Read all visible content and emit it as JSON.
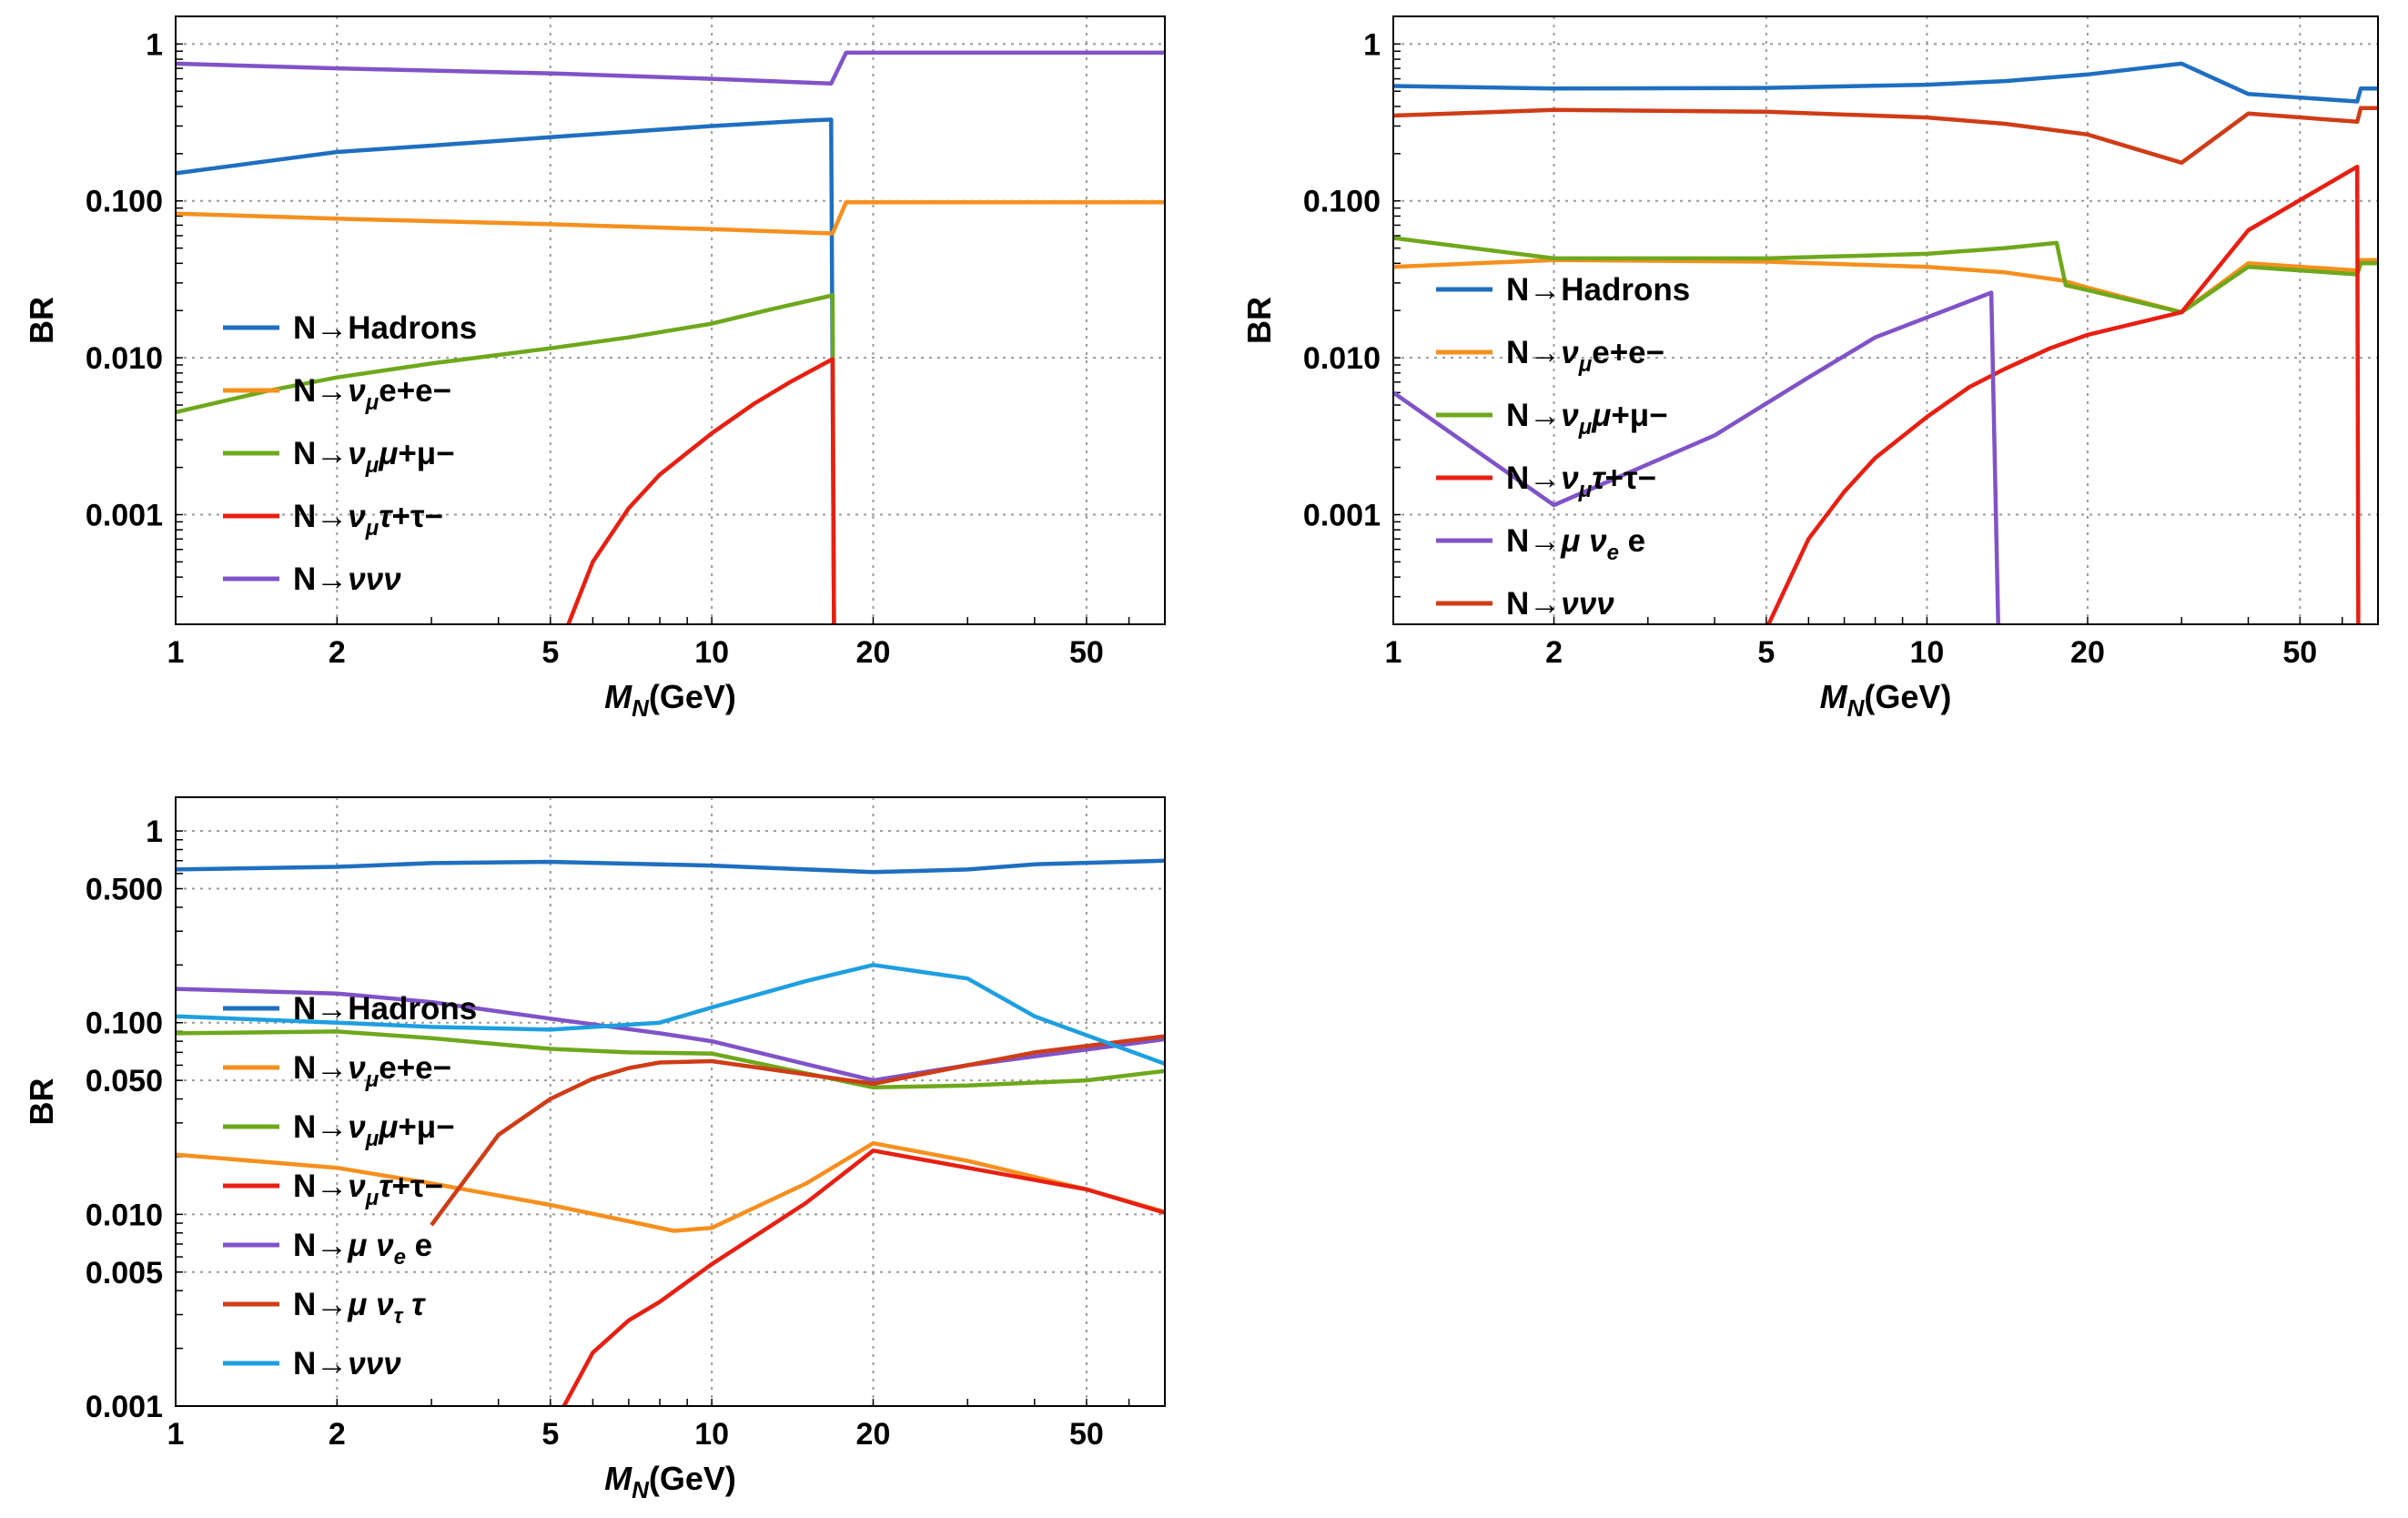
{
  "chart_data": [
    {
      "type": "line",
      "xlabel": "M_N(GeV)",
      "xlabel_main": "M",
      "xlabel_sub": "N",
      "xlabel_unit": "(GeV)",
      "ylabel": "BR",
      "xscale": "log",
      "yscale": "log",
      "xlim": [
        1,
        70
      ],
      "ylim": [
        0.0002,
        1.5
      ],
      "xticks": [
        {
          "v": 1,
          "label": "1"
        },
        {
          "v": 2,
          "label": "2"
        },
        {
          "v": 5,
          "label": "5"
        },
        {
          "v": 10,
          "label": "10"
        },
        {
          "v": 20,
          "label": "20"
        },
        {
          "v": 50,
          "label": "50"
        }
      ],
      "yticks": [
        {
          "v": 1,
          "label": "1"
        },
        {
          "v": 0.1,
          "label": "0.100"
        },
        {
          "v": 0.01,
          "label": "0.010"
        },
        {
          "v": 0.001,
          "label": "0.001"
        }
      ],
      "legend_position": "lower-left",
      "series": [
        {
          "name": "Hadrons",
          "label": "N→Hadrons",
          "color": "#1f6fc0",
          "points": [
            [
              1,
              0.15
            ],
            [
              1.5,
              0.18
            ],
            [
              2,
              0.205
            ],
            [
              3,
              0.225
            ],
            [
              5,
              0.255
            ],
            [
              10,
              0.3
            ],
            [
              15,
              0.325
            ],
            [
              16.7,
              0.33
            ],
            [
              16.9,
              0.0002
            ]
          ]
        },
        {
          "name": "nu_mu e e",
          "label": "N→νμe+e−",
          "color": "#f5901e",
          "points": [
            [
              1,
              0.083
            ],
            [
              2,
              0.077
            ],
            [
              5,
              0.071
            ],
            [
              10,
              0.066
            ],
            [
              16.8,
              0.062
            ],
            [
              17.8,
              0.098
            ],
            [
              70,
              0.098
            ]
          ]
        },
        {
          "name": "nu_mu mu mu",
          "label": "N→νμμ+μ−",
          "color": "#6ea81c",
          "points": [
            [
              1,
              0.0045
            ],
            [
              1.5,
              0.0062
            ],
            [
              2,
              0.0075
            ],
            [
              3,
              0.0092
            ],
            [
              5,
              0.0115
            ],
            [
              7,
              0.0135
            ],
            [
              10,
              0.0165
            ],
            [
              13,
              0.0205
            ],
            [
              16.8,
              0.025
            ],
            [
              16.9,
              0.0002
            ]
          ]
        },
        {
          "name": "nu_mu tau tau",
          "label": "N→νμτ+τ−",
          "color": "#e81f12",
          "points": [
            [
              5.4,
              0.0002
            ],
            [
              6,
              0.0005
            ],
            [
              7,
              0.0011
            ],
            [
              8,
              0.0018
            ],
            [
              10,
              0.0033
            ],
            [
              12,
              0.0051
            ],
            [
              14,
              0.007
            ],
            [
              16.8,
              0.0098
            ],
            [
              16.9,
              0.0002
            ]
          ]
        },
        {
          "name": "nu nu nu",
          "label": "N→ννν",
          "color": "#8053c8",
          "points": [
            [
              1,
              0.75
            ],
            [
              2,
              0.7
            ],
            [
              5,
              0.65
            ],
            [
              10,
              0.6
            ],
            [
              16.7,
              0.56
            ],
            [
              17.8,
              0.88
            ],
            [
              70,
              0.88
            ]
          ]
        }
      ]
    },
    {
      "type": "line",
      "xlabel": "M_N(GeV)",
      "xlabel_main": "M",
      "xlabel_sub": "N",
      "xlabel_unit": "(GeV)",
      "ylabel": "BR",
      "xscale": "log",
      "yscale": "log",
      "xlim": [
        1,
        70
      ],
      "ylim": [
        0.0002,
        1.5
      ],
      "xticks": [
        {
          "v": 1,
          "label": "1"
        },
        {
          "v": 2,
          "label": "2"
        },
        {
          "v": 5,
          "label": "5"
        },
        {
          "v": 10,
          "label": "10"
        },
        {
          "v": 20,
          "label": "20"
        },
        {
          "v": 50,
          "label": "50"
        }
      ],
      "yticks": [
        {
          "v": 1,
          "label": "1"
        },
        {
          "v": 0.1,
          "label": "0.100"
        },
        {
          "v": 0.01,
          "label": "0.010"
        },
        {
          "v": 0.001,
          "label": "0.001"
        }
      ],
      "legend_position": "middle-left",
      "series": [
        {
          "name": "Hadrons",
          "label": "N→Hadrons",
          "color": "#1f6fc0",
          "points": [
            [
              1,
              0.54
            ],
            [
              2,
              0.52
            ],
            [
              5,
              0.525
            ],
            [
              10,
              0.55
            ],
            [
              14,
              0.58
            ],
            [
              20,
              0.64
            ],
            [
              30,
              0.75
            ],
            [
              40,
              0.48
            ],
            [
              64,
              0.43
            ],
            [
              65,
              0.52
            ],
            [
              70,
              0.52
            ]
          ]
        },
        {
          "name": "nu_mu e e",
          "label": "N→νμe+e−",
          "color": "#f5901e",
          "points": [
            [
              1,
              0.038
            ],
            [
              2,
              0.042
            ],
            [
              5,
              0.041
            ],
            [
              10,
              0.038
            ],
            [
              14,
              0.035
            ],
            [
              18,
              0.031
            ],
            [
              20,
              0.028
            ],
            [
              30,
              0.0195
            ],
            [
              40,
              0.04
            ],
            [
              64,
              0.036
            ],
            [
              65,
              0.042
            ],
            [
              70,
              0.042
            ]
          ]
        },
        {
          "name": "nu_mu mu mu",
          "label": "N→νμμ+μ−",
          "color": "#6ea81c",
          "points": [
            [
              1,
              0.058
            ],
            [
              2,
              0.043
            ],
            [
              5,
              0.043
            ],
            [
              10,
              0.046
            ],
            [
              14,
              0.05
            ],
            [
              17.5,
              0.054
            ],
            [
              18.2,
              0.029
            ],
            [
              20,
              0.027
            ],
            [
              30,
              0.0195
            ],
            [
              40,
              0.038
            ],
            [
              64,
              0.034
            ],
            [
              65,
              0.04
            ],
            [
              70,
              0.04
            ]
          ]
        },
        {
          "name": "nu_mu tau tau",
          "label": "N→νμτ+τ−",
          "color": "#e81f12",
          "points": [
            [
              5.05,
              0.0002
            ],
            [
              6,
              0.0007
            ],
            [
              7,
              0.0014
            ],
            [
              8,
              0.0023
            ],
            [
              10,
              0.0042
            ],
            [
              12,
              0.0065
            ],
            [
              14,
              0.0085
            ],
            [
              17,
              0.0115
            ],
            [
              20,
              0.014
            ],
            [
              30,
              0.0195
            ],
            [
              40,
              0.065
            ],
            [
              64,
              0.165
            ],
            [
              64.3,
              0.0002
            ]
          ]
        },
        {
          "name": "mu nu_e e",
          "label": "N→μ νe e",
          "color": "#8053c8",
          "points": [
            [
              1,
              0.006
            ],
            [
              2,
              0.00115
            ],
            [
              4,
              0.0032
            ],
            [
              6,
              0.0075
            ],
            [
              8,
              0.0135
            ],
            [
              13.2,
              0.026
            ],
            [
              13.6,
              0.0002
            ]
          ]
        },
        {
          "name": "nu nu nu",
          "label": "N→ννν",
          "color": "#cf3c16",
          "points": [
            [
              1,
              0.35
            ],
            [
              2,
              0.38
            ],
            [
              5,
              0.37
            ],
            [
              10,
              0.34
            ],
            [
              14,
              0.31
            ],
            [
              20,
              0.265
            ],
            [
              30,
              0.175
            ],
            [
              40,
              0.36
            ],
            [
              64,
              0.32
            ],
            [
              65,
              0.39
            ],
            [
              70,
              0.39
            ]
          ]
        }
      ]
    },
    {
      "type": "line",
      "xlabel": "M_N(GeV)",
      "xlabel_main": "M",
      "xlabel_sub": "N",
      "xlabel_unit": "(GeV)",
      "ylabel": "BR",
      "xscale": "log",
      "yscale": "log",
      "xlim": [
        1,
        70
      ],
      "ylim": [
        0.001,
        1.5
      ],
      "xticks": [
        {
          "v": 1,
          "label": "1"
        },
        {
          "v": 2,
          "label": "2"
        },
        {
          "v": 5,
          "label": "5"
        },
        {
          "v": 10,
          "label": "10"
        },
        {
          "v": 20,
          "label": "20"
        },
        {
          "v": 50,
          "label": "50"
        }
      ],
      "yticks": [
        {
          "v": 1,
          "label": "1"
        },
        {
          "v": 0.5,
          "label": "0.500"
        },
        {
          "v": 0.1,
          "label": "0.100"
        },
        {
          "v": 0.05,
          "label": "0.050"
        },
        {
          "v": 0.01,
          "label": "0.010"
        },
        {
          "v": 0.005,
          "label": "0.005"
        },
        {
          "v": 0.001,
          "label": "0.001"
        }
      ],
      "legend_position": "middle",
      "series": [
        {
          "name": "Hadrons",
          "label": "N→Hadrons",
          "color": "#1f6fc0",
          "points": [
            [
              1,
              0.63
            ],
            [
              2,
              0.65
            ],
            [
              3,
              0.68
            ],
            [
              5,
              0.69
            ],
            [
              10,
              0.66
            ],
            [
              20,
              0.61
            ],
            [
              30,
              0.63
            ],
            [
              40,
              0.67
            ],
            [
              70,
              0.7
            ]
          ]
        },
        {
          "name": "nu_mu e e",
          "label": "N→νμe+e−",
          "color": "#f5901e",
          "points": [
            [
              1,
              0.0205
            ],
            [
              2,
              0.0175
            ],
            [
              3,
              0.0145
            ],
            [
              5,
              0.0112
            ],
            [
              7,
              0.0092
            ],
            [
              8.5,
              0.0082
            ],
            [
              10,
              0.0085
            ],
            [
              15,
              0.0145
            ],
            [
              20,
              0.0235
            ],
            [
              30,
              0.019
            ],
            [
              50,
              0.0135
            ],
            [
              70,
              0.0103
            ]
          ]
        },
        {
          "name": "nu_mu mu mu",
          "label": "N→νμμ+μ−",
          "color": "#6ea81c",
          "points": [
            [
              1,
              0.088
            ],
            [
              2,
              0.09
            ],
            [
              3,
              0.083
            ],
            [
              5,
              0.073
            ],
            [
              7,
              0.07
            ],
            [
              10,
              0.069
            ],
            [
              20,
              0.046
            ],
            [
              30,
              0.047
            ],
            [
              50,
              0.05
            ],
            [
              70,
              0.056
            ]
          ]
        },
        {
          "name": "nu_mu tau tau",
          "label": "N→νμτ+τ−",
          "color": "#e81f12",
          "points": [
            [
              5.3,
              0.001
            ],
            [
              6,
              0.0019
            ],
            [
              7,
              0.0028
            ],
            [
              8,
              0.0035
            ],
            [
              10,
              0.0055
            ],
            [
              15,
              0.0115
            ],
            [
              20,
              0.0215
            ],
            [
              30,
              0.0175
            ],
            [
              50,
              0.0135
            ],
            [
              70,
              0.0102
            ]
          ]
        },
        {
          "name": "mu nu_e e",
          "label": "N→μ νe e",
          "color": "#8053c8",
          "points": [
            [
              1,
              0.15
            ],
            [
              2,
              0.142
            ],
            [
              3,
              0.128
            ],
            [
              5,
              0.105
            ],
            [
              8,
              0.088
            ],
            [
              10,
              0.08
            ],
            [
              20,
              0.05
            ],
            [
              30,
              0.06
            ],
            [
              70,
              0.082
            ]
          ]
        },
        {
          "name": "mu nu_tau tau",
          "label": "N→μ ντ τ",
          "color": "#cf3c16",
          "points": [
            [
              3,
              0.0088
            ],
            [
              4,
              0.026
            ],
            [
              5,
              0.04
            ],
            [
              6,
              0.051
            ],
            [
              7,
              0.058
            ],
            [
              8,
              0.062
            ],
            [
              10,
              0.063
            ],
            [
              20,
              0.048
            ],
            [
              30,
              0.06
            ],
            [
              40,
              0.07
            ],
            [
              70,
              0.085
            ]
          ]
        },
        {
          "name": "nu nu nu",
          "label": "N→ννν",
          "color": "#1e9fe0",
          "points": [
            [
              1,
              0.108
            ],
            [
              2,
              0.1
            ],
            [
              3,
              0.095
            ],
            [
              5,
              0.092
            ],
            [
              8,
              0.1
            ],
            [
              10,
              0.12
            ],
            [
              15,
              0.165
            ],
            [
              20,
              0.2
            ],
            [
              30,
              0.17
            ],
            [
              40,
              0.108
            ],
            [
              70,
              0.061
            ]
          ]
        }
      ]
    }
  ]
}
